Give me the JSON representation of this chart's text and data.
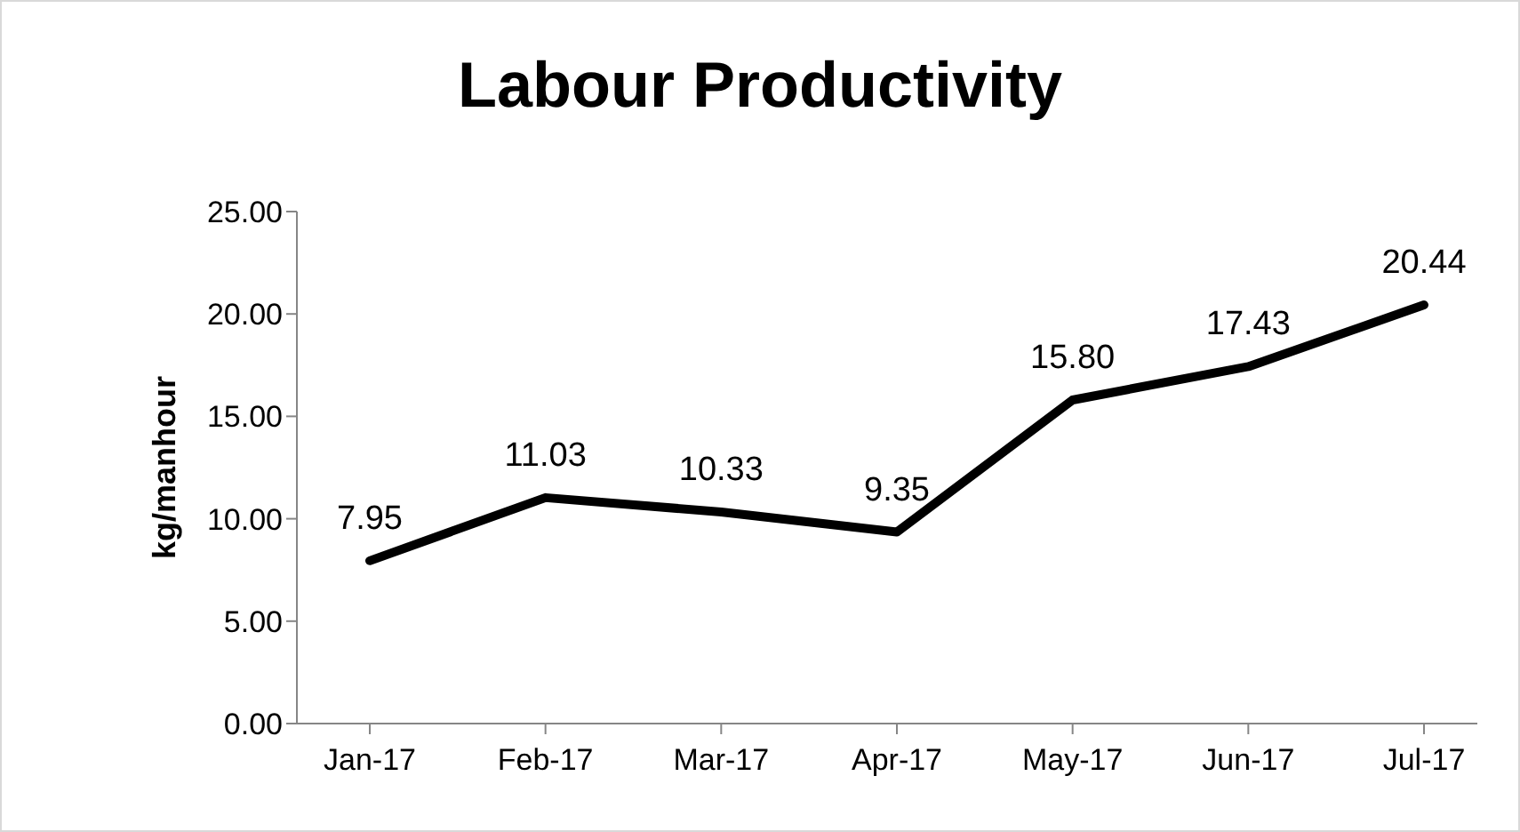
{
  "chart_data": {
    "type": "line",
    "title": "Labour Productivity",
    "ylabel": "kg/manhour",
    "categories": [
      "Jan-17",
      "Feb-17",
      "Mar-17",
      "Apr-17",
      "May-17",
      "Jun-17",
      "Jul-17"
    ],
    "series": [
      {
        "color": "#000000",
        "values": [
          7.95,
          11.03,
          10.33,
          9.35,
          15.8,
          17.43,
          20.44
        ],
        "value_labels": [
          "7.95",
          "11.03",
          "10.33",
          "9.35",
          "15.80",
          "17.43",
          "20.44"
        ]
      }
    ],
    "ylim": [
      0,
      25
    ],
    "yticks": [
      {
        "value": 0,
        "label": "0.00"
      },
      {
        "value": 5,
        "label": "5.00"
      },
      {
        "value": 10,
        "label": "10.00"
      },
      {
        "value": 15,
        "label": "15.00"
      },
      {
        "value": 20,
        "label": "20.00"
      },
      {
        "value": 25,
        "label": "25.00"
      }
    ],
    "grid": false,
    "legend": false,
    "marker": "none",
    "line_style": "solid"
  }
}
